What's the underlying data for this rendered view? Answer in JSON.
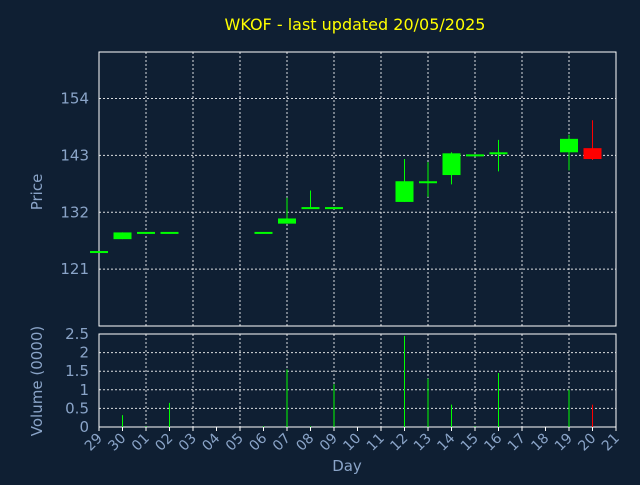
{
  "chart_data": {
    "type": "candlestick",
    "title": "WKOF - last updated 20/05/2025",
    "xlabel": "Day",
    "x_ticks": [
      "29",
      "30",
      "01",
      "02",
      "03",
      "04",
      "05",
      "06",
      "07",
      "08",
      "09",
      "10",
      "11",
      "12",
      "13",
      "14",
      "15",
      "16",
      "17",
      "18",
      "19",
      "20",
      "21"
    ],
    "price_panel": {
      "ylabel": "Price",
      "ylim": [
        110,
        163
      ],
      "yticks": [
        121,
        132,
        143,
        154
      ],
      "grid": true
    },
    "volume_panel": {
      "ylabel": "Volume (0000)",
      "ylim": [
        0,
        2.5
      ],
      "yticks": [
        "0",
        "0.5",
        "1",
        "1.5",
        "2",
        "2.5"
      ],
      "grid": true
    },
    "colors": {
      "up": "#00ff00",
      "down": "#ff0000",
      "title": "#ffff00",
      "axis_text": "#8aa4c8",
      "background": "#0f1f33"
    },
    "candles": [
      {
        "day": "29",
        "open": 124.5,
        "high": 124.5,
        "low": 124.5,
        "close": 124.5,
        "volume": 0.0
      },
      {
        "day": "30",
        "open": 126.8,
        "high": 128.1,
        "low": 126.8,
        "close": 128.1,
        "volume": 0.32
      },
      {
        "day": "01",
        "open": 128.2,
        "high": 128.2,
        "low": 128.2,
        "close": 128.2,
        "volume": 0.02
      },
      {
        "day": "02",
        "open": 128.2,
        "high": 128.2,
        "low": 128.2,
        "close": 128.2,
        "volume": 0.65
      },
      {
        "day": "06",
        "open": 128.2,
        "high": 128.2,
        "low": 128.2,
        "close": 128.2,
        "volume": 0.02
      },
      {
        "day": "07",
        "open": 129.8,
        "high": 134.8,
        "low": 129.8,
        "close": 130.8,
        "volume": 1.55
      },
      {
        "day": "08",
        "open": 133.0,
        "high": 136.2,
        "low": 133.0,
        "close": 133.0,
        "volume": 0.02
      },
      {
        "day": "09",
        "open": 133.0,
        "high": 133.0,
        "low": 133.0,
        "close": 133.0,
        "volume": 1.15
      },
      {
        "day": "12",
        "open": 134.0,
        "high": 142.3,
        "low": 134.0,
        "close": 138.0,
        "volume": 2.45
      },
      {
        "day": "13",
        "open": 138.0,
        "high": 141.7,
        "low": 135.0,
        "close": 138.0,
        "volume": 1.3
      },
      {
        "day": "14",
        "open": 139.2,
        "high": 143.6,
        "low": 137.4,
        "close": 143.4,
        "volume": 0.6
      },
      {
        "day": "15",
        "open": 143.2,
        "high": 143.2,
        "low": 143.2,
        "close": 143.2,
        "volume": 0.02
      },
      {
        "day": "16",
        "open": 143.4,
        "high": 146.0,
        "low": 139.9,
        "close": 143.6,
        "volume": 1.45
      },
      {
        "day": "19",
        "open": 143.6,
        "high": 147.0,
        "low": 140.1,
        "close": 146.2,
        "volume": 1.0
      },
      {
        "day": "20",
        "open": 144.4,
        "high": 149.8,
        "low": 142.1,
        "close": 142.3,
        "volume": 0.6
      }
    ]
  }
}
